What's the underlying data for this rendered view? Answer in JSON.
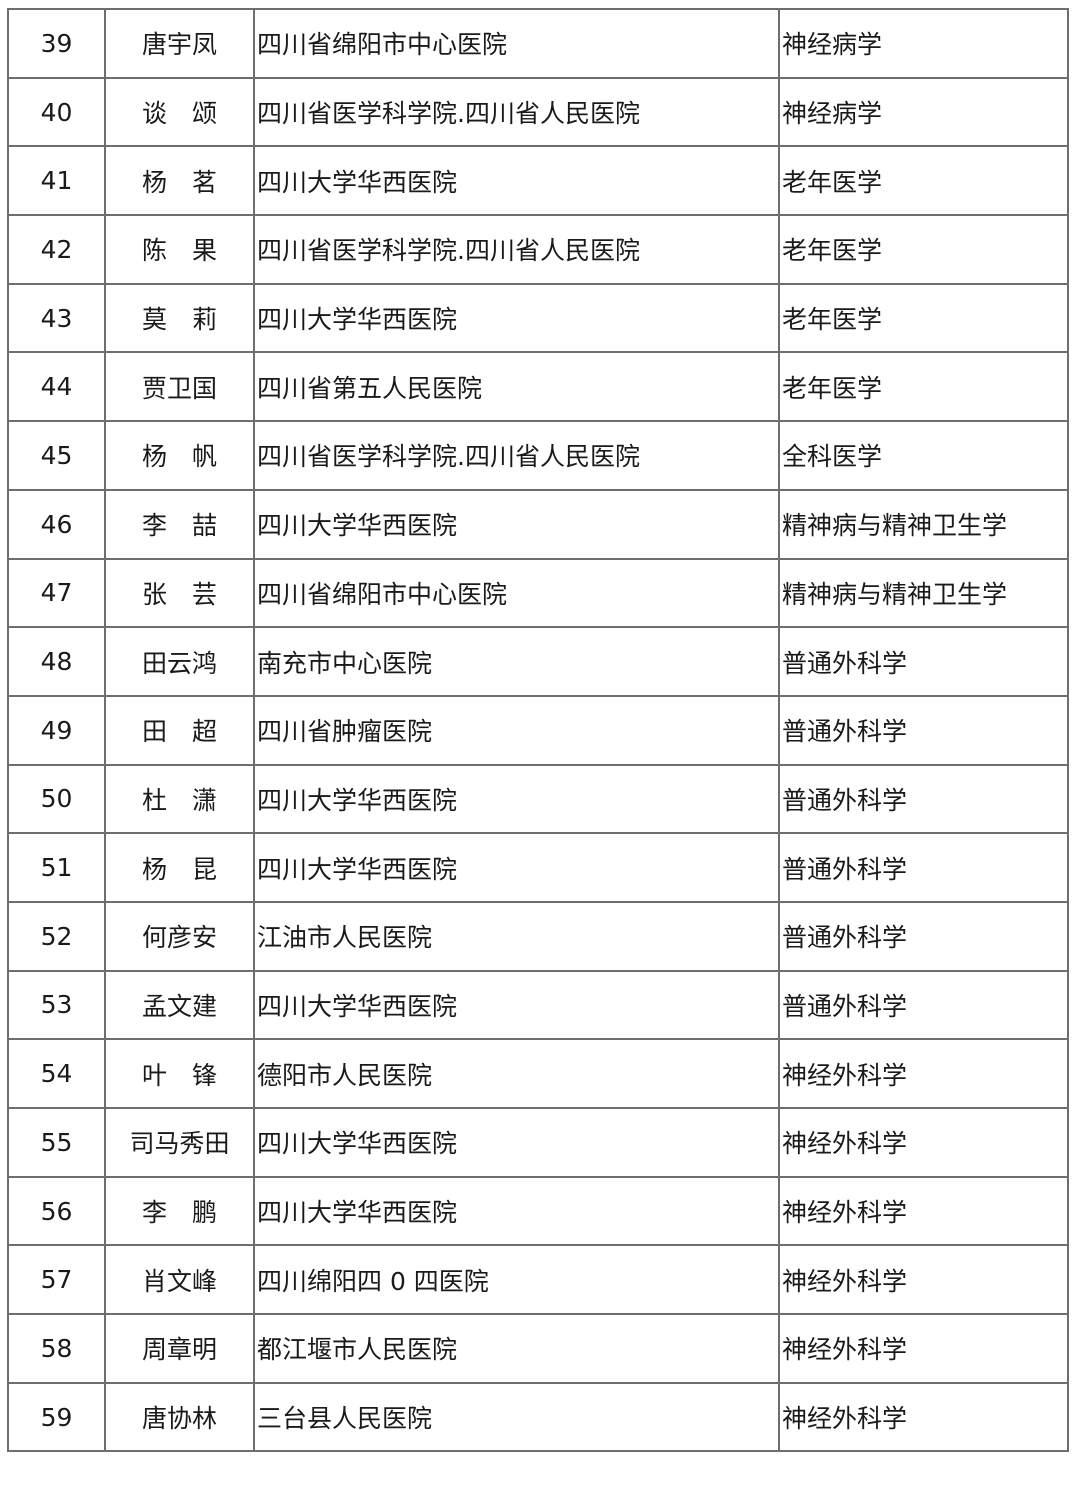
{
  "table": {
    "rows": [
      {
        "no": "39",
        "name": "唐宇凤",
        "unit": "四川省绵阳市中心医院",
        "dept": "神经病学"
      },
      {
        "no": "40",
        "name": "谈　颂",
        "unit": "四川省医学科学院.四川省人民医院",
        "dept": "神经病学"
      },
      {
        "no": "41",
        "name": "杨　茗",
        "unit": "四川大学华西医院",
        "dept": "老年医学"
      },
      {
        "no": "42",
        "name": "陈　果",
        "unit": "四川省医学科学院.四川省人民医院",
        "dept": "老年医学"
      },
      {
        "no": "43",
        "name": "莫　莉",
        "unit": "四川大学华西医院",
        "dept": "老年医学"
      },
      {
        "no": "44",
        "name": "贾卫国",
        "unit": "四川省第五人民医院",
        "dept": "老年医学"
      },
      {
        "no": "45",
        "name": "杨　帆",
        "unit": "四川省医学科学院.四川省人民医院",
        "dept": "全科医学"
      },
      {
        "no": "46",
        "name": "李　喆",
        "unit": "四川大学华西医院",
        "dept": "精神病与精神卫生学"
      },
      {
        "no": "47",
        "name": "张　芸",
        "unit": "四川省绵阳市中心医院",
        "dept": "精神病与精神卫生学"
      },
      {
        "no": "48",
        "name": "田云鸿",
        "unit": "南充市中心医院",
        "dept": "普通外科学"
      },
      {
        "no": "49",
        "name": "田　超",
        "unit": "四川省肿瘤医院",
        "dept": "普通外科学"
      },
      {
        "no": "50",
        "name": "杜　潇",
        "unit": "四川大学华西医院",
        "dept": "普通外科学"
      },
      {
        "no": "51",
        "name": "杨　昆",
        "unit": "四川大学华西医院",
        "dept": "普通外科学"
      },
      {
        "no": "52",
        "name": "何彦安",
        "unit": "江油市人民医院",
        "dept": "普通外科学"
      },
      {
        "no": "53",
        "name": "孟文建",
        "unit": "四川大学华西医院",
        "dept": "普通外科学"
      },
      {
        "no": "54",
        "name": "叶　锋",
        "unit": "德阳市人民医院",
        "dept": "神经外科学"
      },
      {
        "no": "55",
        "name": "司马秀田",
        "unit": "四川大学华西医院",
        "dept": "神经外科学"
      },
      {
        "no": "56",
        "name": "李　鹏",
        "unit": "四川大学华西医院",
        "dept": "神经外科学"
      },
      {
        "no": "57",
        "name": "肖文峰",
        "unit": "四川绵阳四 0 四医院",
        "dept": "神经外科学"
      },
      {
        "no": "58",
        "name": "周章明",
        "unit": "都江堰市人民医院",
        "dept": "神经外科学"
      },
      {
        "no": "59",
        "name": "唐协林",
        "unit": "三台县人民医院",
        "dept": "神经外科学"
      }
    ]
  }
}
